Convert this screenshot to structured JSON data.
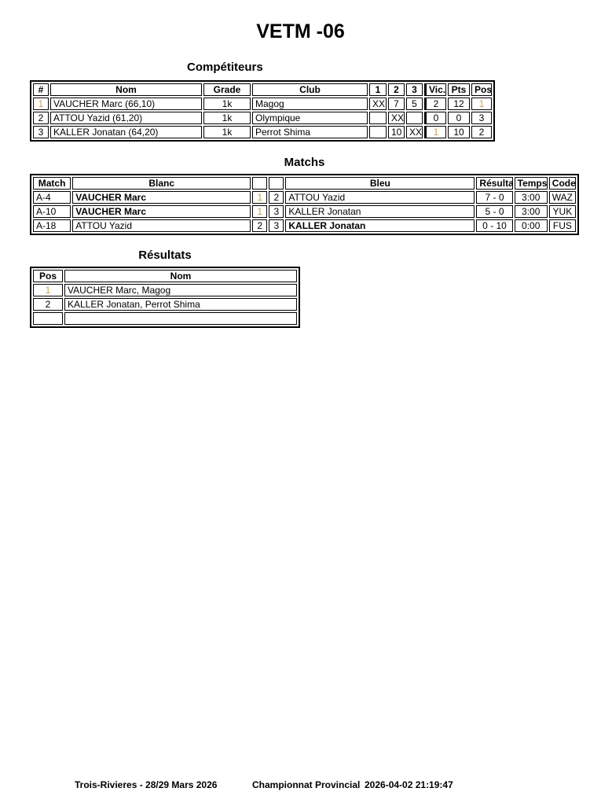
{
  "title": "VETM -06",
  "colors": {
    "gold": "#C8A24B"
  },
  "competitors": {
    "heading": "Compétiteurs",
    "columns": [
      "#",
      "Nom",
      "Grade",
      "Club",
      "1",
      "2",
      "3",
      "Vic.",
      "Pts",
      "Pos"
    ],
    "rows": [
      [
        "1",
        "VAUCHER Marc (66,10)",
        "1k",
        "Magog",
        "XX",
        "7",
        "5",
        "2",
        "12",
        "1"
      ],
      [
        "2",
        "ATTOU Yazid (61,20)",
        "1k",
        "Olympique",
        "",
        "XX",
        "",
        "0",
        "0",
        "3"
      ],
      [
        "3",
        "KALLER Jonatan (64,20)",
        "1k",
        "Perrot Shima",
        "",
        "10",
        "XX",
        "1",
        "10",
        "2"
      ]
    ]
  },
  "matches": {
    "heading": "Matchs",
    "columns": [
      "Match",
      "Blanc",
      "",
      "",
      "Bleu",
      "Résultat",
      "Temps",
      "Code"
    ],
    "rows": [
      [
        "A-4",
        {
          "t": "VAUCHER Marc",
          "b": true
        },
        "1",
        "2",
        "ATTOU Yazid",
        "7 - 0",
        "3:00",
        "WAZ"
      ],
      [
        "A-10",
        {
          "t": "VAUCHER Marc",
          "b": true
        },
        "1",
        "3",
        "KALLER Jonatan",
        "5 - 0",
        "3:00",
        "YUK"
      ],
      [
        "A-18",
        "ATTOU Yazid",
        "2",
        "3",
        {
          "t": "KALLER Jonatan",
          "b": true
        },
        "0 - 10",
        "0:00",
        "FUS"
      ]
    ]
  },
  "results": {
    "heading": "Résultats",
    "columns": [
      "Pos",
      "Nom"
    ],
    "rows": [
      [
        "1",
        "VAUCHER Marc, Magog"
      ],
      [
        "2",
        "KALLER Jonatan, Perrot Shima"
      ],
      [
        "",
        ""
      ]
    ]
  },
  "footer": {
    "event_location_date": "Trois-Rivieres - 28/29 Mars 2026",
    "event_name": "Championnat Provincial",
    "generated_at": "2026-04-02 21:19:47"
  }
}
